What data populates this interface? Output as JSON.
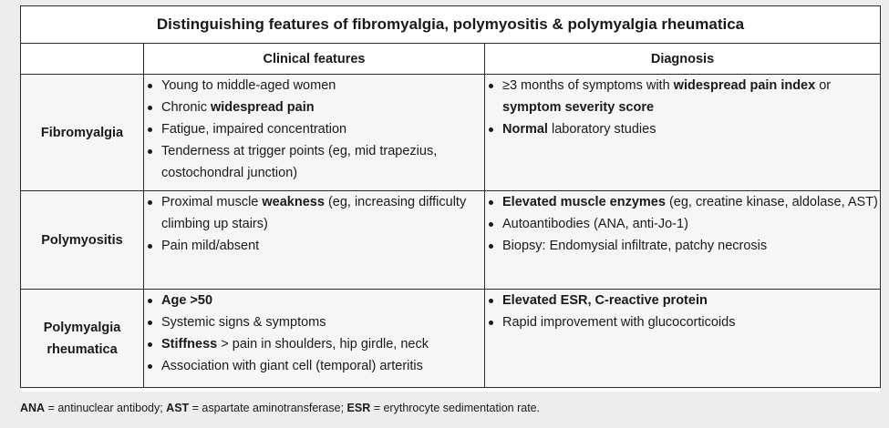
{
  "title": "Distinguishing features of fibromyalgia, polymyositis & polymyalgia rheumatica",
  "headers": [
    "",
    "Clinical features",
    "Diagnosis"
  ],
  "rows": [
    {
      "label": "Fibromyalgia",
      "clinical": [
        [
          {
            "t": "Young to middle-aged women",
            "b": false
          }
        ],
        [
          {
            "t": "Chronic ",
            "b": false
          },
          {
            "t": "widespread pain",
            "b": true
          }
        ],
        [
          {
            "t": "Fatigue, impaired concentration",
            "b": false
          }
        ],
        [
          {
            "t": "Tenderness at trigger points (eg, mid trapezius, costochondral junction)",
            "b": false
          }
        ]
      ],
      "diagnosis": [
        [
          {
            "t": "≥3 months of symptoms with ",
            "b": false
          },
          {
            "t": "widespread pain index",
            "b": true
          },
          {
            "t": " or ",
            "b": false
          },
          {
            "t": "symptom severity score",
            "b": true
          }
        ],
        [
          {
            "t": "Normal",
            "b": true
          },
          {
            "t": " laboratory studies",
            "b": false
          }
        ]
      ]
    },
    {
      "label": "Polymyositis",
      "clinical": [
        [
          {
            "t": "Proximal muscle ",
            "b": false
          },
          {
            "t": "weakness",
            "b": true
          },
          {
            "t": " (eg, increasing difficulty climbing up stairs)",
            "b": false
          }
        ],
        [
          {
            "t": "Pain mild/absent",
            "b": false
          }
        ]
      ],
      "diagnosis": [
        [
          {
            "t": "Elevated muscle enzymes",
            "b": true
          },
          {
            "t": " (eg, creatine kinase, aldolase, AST)",
            "b": false
          }
        ],
        [
          {
            "t": "Autoantibodies (ANA, anti-Jo-1)",
            "b": false
          }
        ],
        [
          {
            "t": "Biopsy: Endomysial infiltrate, patchy necrosis",
            "b": false
          }
        ]
      ]
    },
    {
      "label": "Polymyalgia rheumatica",
      "clinical": [
        [
          {
            "t": "Age >50",
            "b": true
          }
        ],
        [
          {
            "t": "Systemic signs & symptoms",
            "b": false
          }
        ],
        [
          {
            "t": "Stiffness",
            "b": true
          },
          {
            "t": " > pain in shoulders, hip girdle, neck",
            "b": false
          }
        ],
        [
          {
            "t": "Association with giant cell (temporal) arteritis",
            "b": false
          }
        ]
      ],
      "diagnosis": [
        [
          {
            "t": "Elevated ESR, C-reactive protein",
            "b": true
          }
        ],
        [
          {
            "t": "Rapid improvement with glucocorticoids",
            "b": false
          }
        ]
      ]
    }
  ],
  "footnote": [
    {
      "t": "ANA",
      "b": true
    },
    {
      "t": " = antinuclear antibody; ",
      "b": false
    },
    {
      "t": "AST",
      "b": true
    },
    {
      "t": " = aspartate aminotransferase; ",
      "b": false
    },
    {
      "t": "ESR",
      "b": true
    },
    {
      "t": " = erythrocyte sedimentation rate.",
      "b": false
    }
  ]
}
